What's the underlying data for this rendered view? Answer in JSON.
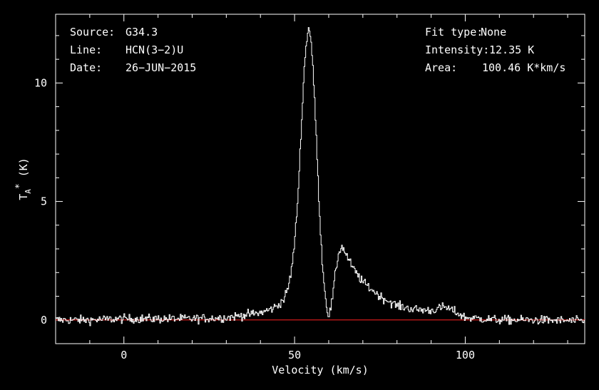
{
  "header": {
    "source_label": "Source:",
    "source_value": "G34.3",
    "line_label": "Line:",
    "line_value": "HCN(3−2)U",
    "date_label": "Date:",
    "date_value": "26−JUN−2015",
    "fit_label": "Fit type:",
    "fit_value": "None",
    "intensity_label": "Intensity:",
    "intensity_value": "12.35 K",
    "area_label": "Area:",
    "area_value": "100.46 K*km/s"
  },
  "colors": {
    "background": "#000000",
    "spectrum": "#ffffff",
    "baseline": "#ff2020",
    "axes": "#ffffff"
  },
  "chart_data": {
    "type": "line",
    "xlabel": "Velocity (km/s)",
    "ylabel": "T_A^* (K)",
    "xlim": [
      -20,
      135
    ],
    "ylim": [
      -1.0,
      12.9
    ],
    "x_ticks": [
      0,
      50,
      100
    ],
    "y_ticks": [
      0,
      5,
      10
    ],
    "baseline_value": 0,
    "peak_intensity_K": 12.35,
    "series": [
      {
        "values_x": [
          -20,
          -10,
          0,
          10,
          20,
          30,
          35,
          40,
          43,
          45,
          47,
          48,
          49,
          50,
          51,
          52,
          53,
          54,
          54.5,
          55,
          56,
          57,
          58,
          59,
          60,
          61,
          62,
          63,
          64,
          65,
          67,
          70,
          75,
          80,
          85,
          90,
          94,
          97,
          100,
          110,
          120,
          135
        ],
        "values_y": [
          0,
          0,
          0.05,
          0.05,
          0.05,
          0.1,
          0.2,
          0.3,
          0.45,
          0.6,
          0.9,
          1.3,
          2.0,
          3.2,
          5.2,
          8.2,
          11.0,
          12.35,
          12.2,
          11.5,
          9.0,
          5.5,
          2.7,
          1.0,
          0.1,
          0.8,
          2.0,
          2.9,
          3.1,
          2.8,
          2.2,
          1.6,
          1.0,
          0.6,
          0.45,
          0.4,
          0.55,
          0.35,
          0.1,
          0.0,
          0.0,
          -0.05
        ]
      }
    ]
  }
}
